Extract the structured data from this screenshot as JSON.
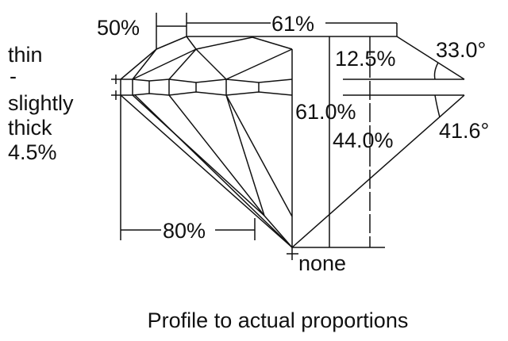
{
  "labels": {
    "girdle_thickness": [
      "thin",
      "-",
      "slightly",
      "thick",
      "4.5%"
    ],
    "star_length": "50%",
    "table": "61%",
    "crown_height": "12.5%",
    "crown_angle": "33.0°",
    "total_depth": "61.0%",
    "pavilion_depth": "44.0%",
    "pavilion_angle": "41.6°",
    "lower_half_length": "80%",
    "culet": "none"
  },
  "caption": "Profile to actual proportions"
}
